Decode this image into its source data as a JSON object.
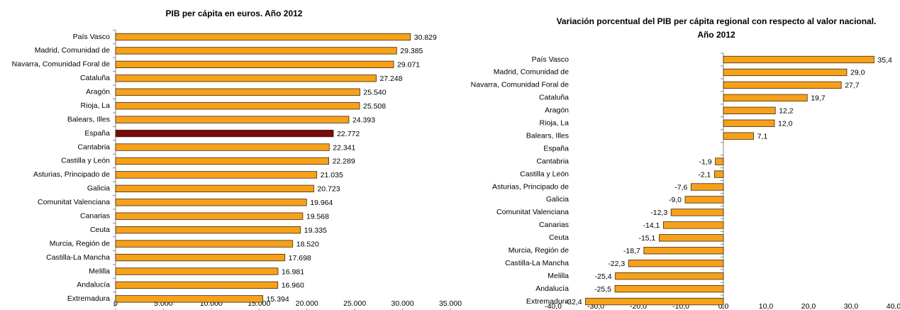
{
  "chart_data": [
    {
      "type": "bar",
      "orientation": "horizontal",
      "title": "PIB per cápita en euros. Año 2012",
      "categories": [
        "País Vasco",
        "Madrid, Comunidad de",
        "Navarra, Comunidad  Foral de",
        "Cataluña",
        "Aragón",
        "Rioja, La",
        "Balears, Illes",
        "España",
        "Cantabria",
        "Castilla y León",
        "Asturias, Principado de",
        "Galicia",
        "Comunitat Valenciana",
        "Canarias",
        "Ceuta",
        "Murcia, Región de",
        "Castilla-La Mancha",
        "Melilla",
        "Andalucía",
        "Extremadura"
      ],
      "values": [
        30829,
        29385,
        29071,
        27248,
        25540,
        25508,
        24393,
        22772,
        22341,
        22289,
        21035,
        20723,
        19964,
        19568,
        19335,
        18520,
        17698,
        16981,
        16960,
        15394
      ],
      "value_labels": [
        "30.829",
        "29.385",
        "29.071",
        "27.248",
        "25.540",
        "25.508",
        "24.393",
        "22.772",
        "22.341",
        "22.289",
        "21.035",
        "20.723",
        "19.964",
        "19.568",
        "19.335",
        "18.520",
        "17.698",
        "16.981",
        "16.960",
        "15.394"
      ],
      "colors": [
        "#f7a11a",
        "#f7a11a",
        "#f7a11a",
        "#f7a11a",
        "#f7a11a",
        "#f7a11a",
        "#f7a11a",
        "#7b0a0a",
        "#f7a11a",
        "#f7a11a",
        "#f7a11a",
        "#f7a11a",
        "#f7a11a",
        "#f7a11a",
        "#f7a11a",
        "#f7a11a",
        "#f7a11a",
        "#f7a11a",
        "#f7a11a",
        "#f7a11a"
      ],
      "xlim": [
        0,
        35000
      ],
      "xticks": [
        0,
        {
          "value": 5000,
          "label": "5.000"
        },
        {
          "value": 10000,
          "label": "10.000"
        },
        {
          "value": 15000,
          "label": "15.000"
        },
        {
          "value": 20000,
          "label": "20.000"
        },
        {
          "value": 25000,
          "label": "25.000"
        },
        {
          "value": 30000,
          "label": "30.000"
        },
        {
          "value": 35000,
          "label": "35.000"
        }
      ],
      "grid": false
    },
    {
      "type": "bar",
      "orientation": "horizontal",
      "title": "Variación porcentual del PIB per cápita regional con respecto al valor nacional.",
      "subtitle": "Año 2012",
      "categories": [
        "País Vasco",
        "Madrid, Comunidad de",
        "Navarra, Comunidad  Foral de",
        "Cataluña",
        "Aragón",
        "Rioja, La",
        "Balears, Illes",
        "España",
        "Cantabria",
        "Castilla y León",
        "Asturias, Principado de",
        "Galicia",
        "Comunitat Valenciana",
        "Canarias",
        "Ceuta",
        "Murcia, Región de",
        "Castilla-La Mancha",
        "Melilla",
        "Andalucía",
        "Extremadura"
      ],
      "values": [
        35.4,
        29.0,
        27.7,
        19.7,
        12.2,
        12.0,
        7.1,
        0,
        -1.9,
        -2.1,
        -7.6,
        -9.0,
        -12.3,
        -14.1,
        -15.1,
        -18.7,
        -22.3,
        -25.4,
        -25.5,
        -32.4
      ],
      "value_labels": [
        "35,4",
        "29,0",
        "27,7",
        "19,7",
        "12,2",
        "12,0",
        "7,1",
        null,
        "-1,9",
        "-2,1",
        "-7,6",
        "-9,0",
        "-12,3",
        "-14,1",
        "-15,1",
        "-18,7",
        "-22,3",
        "-25,4",
        "-25,5",
        "-32,4"
      ],
      "color": "#f7a11a",
      "xlim": [
        -40,
        40
      ],
      "xticks": [
        {
          "value": -40,
          "label": "-40,0"
        },
        {
          "value": -30,
          "label": "-30,0"
        },
        {
          "value": -20,
          "label": "-20,0"
        },
        {
          "value": -10,
          "label": "-10,0"
        },
        {
          "value": 0,
          "label": "0,0"
        },
        {
          "value": 10,
          "label": "10,0"
        },
        {
          "value": 20,
          "label": "20,0"
        },
        {
          "value": 30,
          "label": "30,0"
        },
        {
          "value": 40,
          "label": "40,0"
        }
      ],
      "grid": false
    }
  ]
}
